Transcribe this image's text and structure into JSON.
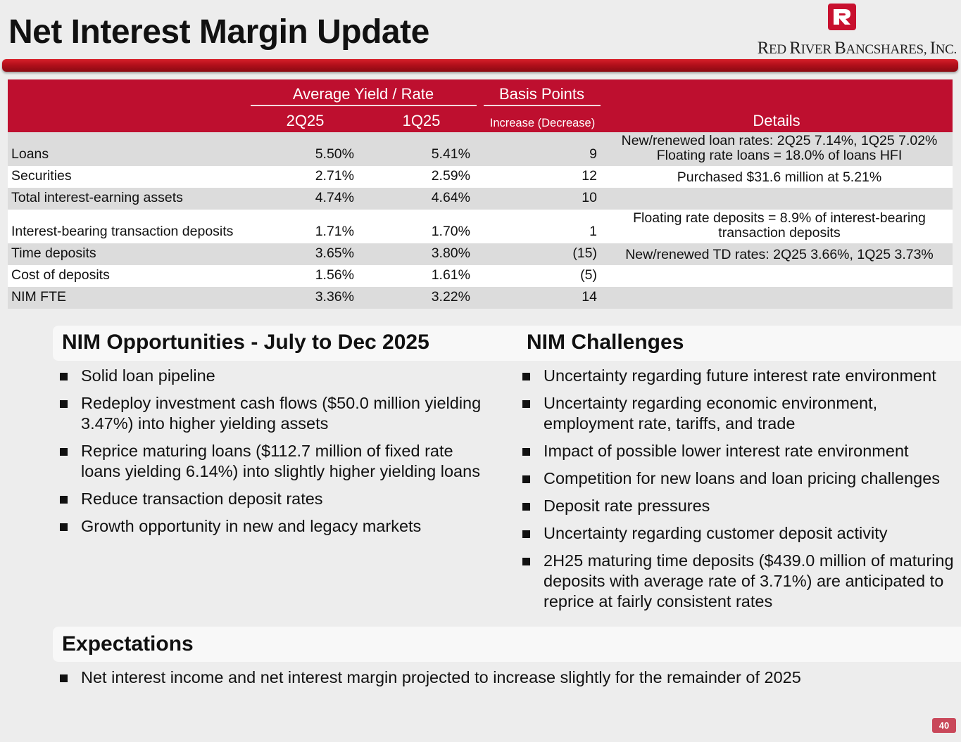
{
  "slide": {
    "title": "Net Interest Margin Update",
    "page_number": "40"
  },
  "logo": {
    "company_big_1": "R",
    "company_small_1": "ED ",
    "company_big_2": "R",
    "company_small_2": "IVER ",
    "company_big_3": "B",
    "company_small_3": "ANCSHARES, ",
    "company_big_4": "I",
    "company_small_4": "NC.",
    "color": "#c8102e"
  },
  "table": {
    "group_yield": "Average Yield / Rate",
    "group_bp": "Basis Points",
    "col_2q": "2Q25",
    "col_1q": "1Q25",
    "col_bp": "Increase (Decrease)",
    "col_details": "Details",
    "rows": [
      {
        "label": "Loans",
        "q2": "5.50%",
        "q1": "5.41%",
        "bp": "9",
        "details": "New/renewed loan rates: 2Q25 7.14%, 1Q25 7.02% Floating rate loans = 18.0% of loans HFI"
      },
      {
        "label": "Securities",
        "q2": "2.71%",
        "q1": "2.59%",
        "bp": "12",
        "details": "Purchased $31.6 million at 5.21%"
      },
      {
        "label": "Total interest-earning assets",
        "q2": "4.74%",
        "q1": "4.64%",
        "bp": "10",
        "details": ""
      },
      {
        "label": "Interest-bearing transaction deposits",
        "q2": "1.71%",
        "q1": "1.70%",
        "bp": "1",
        "details": "Floating rate deposits = 8.9% of interest-bearing transaction deposits"
      },
      {
        "label": "Time deposits",
        "q2": "3.65%",
        "q1": "3.80%",
        "bp": "(15)",
        "details": "New/renewed TD rates: 2Q25 3.66%, 1Q25 3.73%"
      },
      {
        "label": "Cost of deposits",
        "q2": "1.56%",
        "q1": "1.61%",
        "bp": "(5)",
        "details": ""
      },
      {
        "label": "NIM FTE",
        "q2": "3.36%",
        "q1": "3.22%",
        "bp": "14",
        "details": ""
      }
    ]
  },
  "opportunities": {
    "title": "NIM Opportunities - July to Dec 2025",
    "items": [
      "Solid loan pipeline",
      "Redeploy investment cash flows ($50.0 million yielding 3.47%) into higher yielding assets",
      "Reprice maturing loans ($112.7 million of fixed rate loans yielding 6.14%) into slightly higher yielding loans",
      "Reduce transaction deposit rates",
      "Growth opportunity in new and legacy markets"
    ]
  },
  "challenges": {
    "title": "NIM Challenges",
    "items": [
      "Uncertainty regarding future interest rate environment",
      "Uncertainty regarding economic environment, employment rate, tariffs, and trade",
      "Impact of possible lower interest rate environment",
      "Competition for new loans and loan pricing challenges",
      "Deposit rate pressures",
      "Uncertainty regarding customer deposit activity",
      "2H25 maturing time deposits ($439.0 million of maturing deposits with average rate of 3.71%) are anticipated to reprice at fairly consistent rates"
    ]
  },
  "expectations": {
    "title": "Expectations",
    "items": [
      "Net interest income and net interest margin projected to increase slightly for the remainder of 2025"
    ]
  }
}
